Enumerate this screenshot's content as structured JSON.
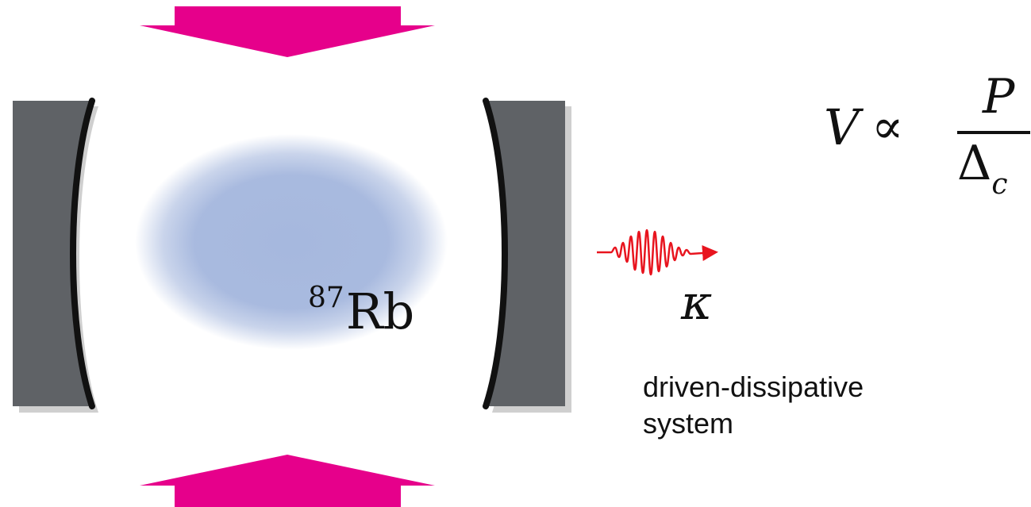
{
  "atom": {
    "mass_number": "87",
    "symbol": "Rb"
  },
  "loss": {
    "symbol": "κ"
  },
  "system": {
    "description": "driven-dissipative system"
  },
  "formula": {
    "lhs": "V",
    "relation": "∝",
    "numerator": "P",
    "denominator": "Δ",
    "denominator_subscript": "c"
  },
  "colors": {
    "pump_arrow": "#e6008b",
    "mirror_body": "#5f6266",
    "mirror_shadow": "#c8c8c8",
    "mirror_edge": "#111111",
    "atom_cloud": "#a6b8de",
    "photon": "#e8141e"
  },
  "icons": {
    "pump_top": "arrow-down-icon",
    "pump_bottom": "arrow-up-icon",
    "photon": "wave-packet-icon"
  }
}
